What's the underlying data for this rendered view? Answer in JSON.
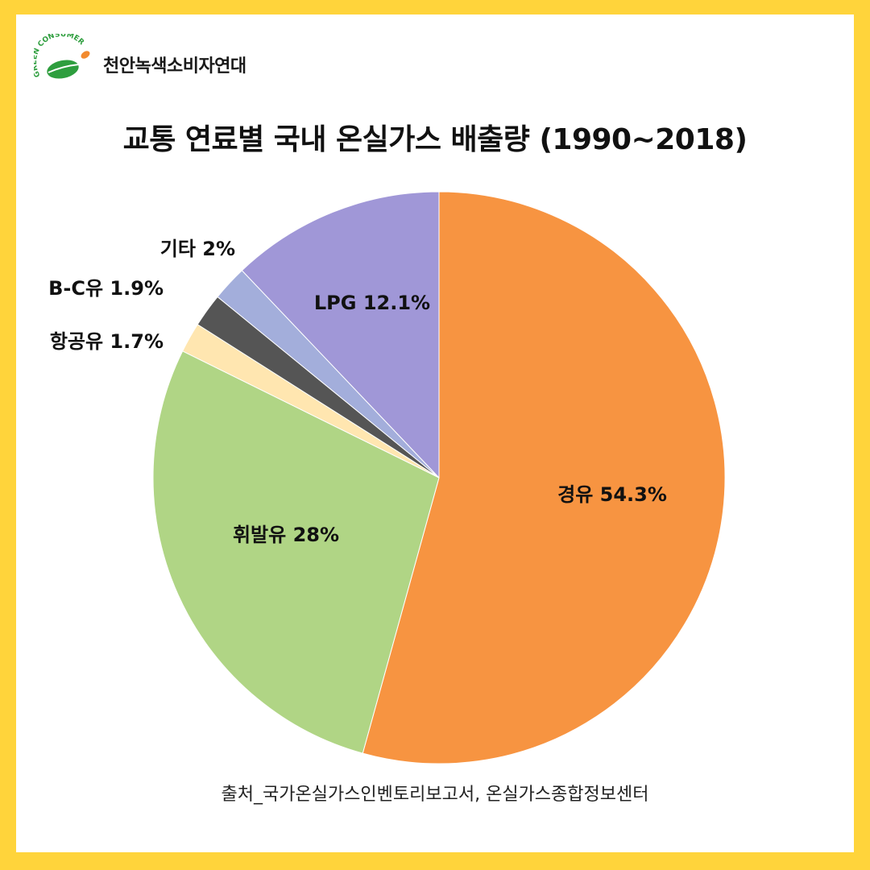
{
  "header": {
    "org_name": "천안녹색소비자연대",
    "logo_text": "GREEN CONSUMER"
  },
  "colors": {
    "background": "#FFD43B",
    "card": "#FFFFFF",
    "logo_green": "#2E9E3E",
    "logo_orange": "#F28A2E"
  },
  "chart_data": {
    "type": "pie",
    "title": "교통 연료별 국내 온실가스 배출량 (1990~2018)",
    "start": "12 o'clock, clockwise",
    "slices": [
      {
        "name": "경유",
        "label": "경유 54.3%",
        "value": 54.3,
        "color": "#F79441"
      },
      {
        "name": "휘발유",
        "label": "휘발유 28%",
        "value": 28.0,
        "color": "#B0D585"
      },
      {
        "name": "항공유",
        "label": "항공유 1.7%",
        "value": 1.7,
        "color": "#FFE6B0"
      },
      {
        "name": "B-C유",
        "label": "B-C유 1.9%",
        "value": 1.9,
        "color": "#555555"
      },
      {
        "name": "기타",
        "label": "기타 2%",
        "value": 2.0,
        "color": "#A3AEDB"
      },
      {
        "name": "LPG",
        "label": "LPG 12.1%",
        "value": 12.1,
        "color": "#A097D7"
      }
    ]
  },
  "footer": {
    "source": "출처_국가온실가스인벤토리보고서, 온실가스종합정보센터"
  }
}
